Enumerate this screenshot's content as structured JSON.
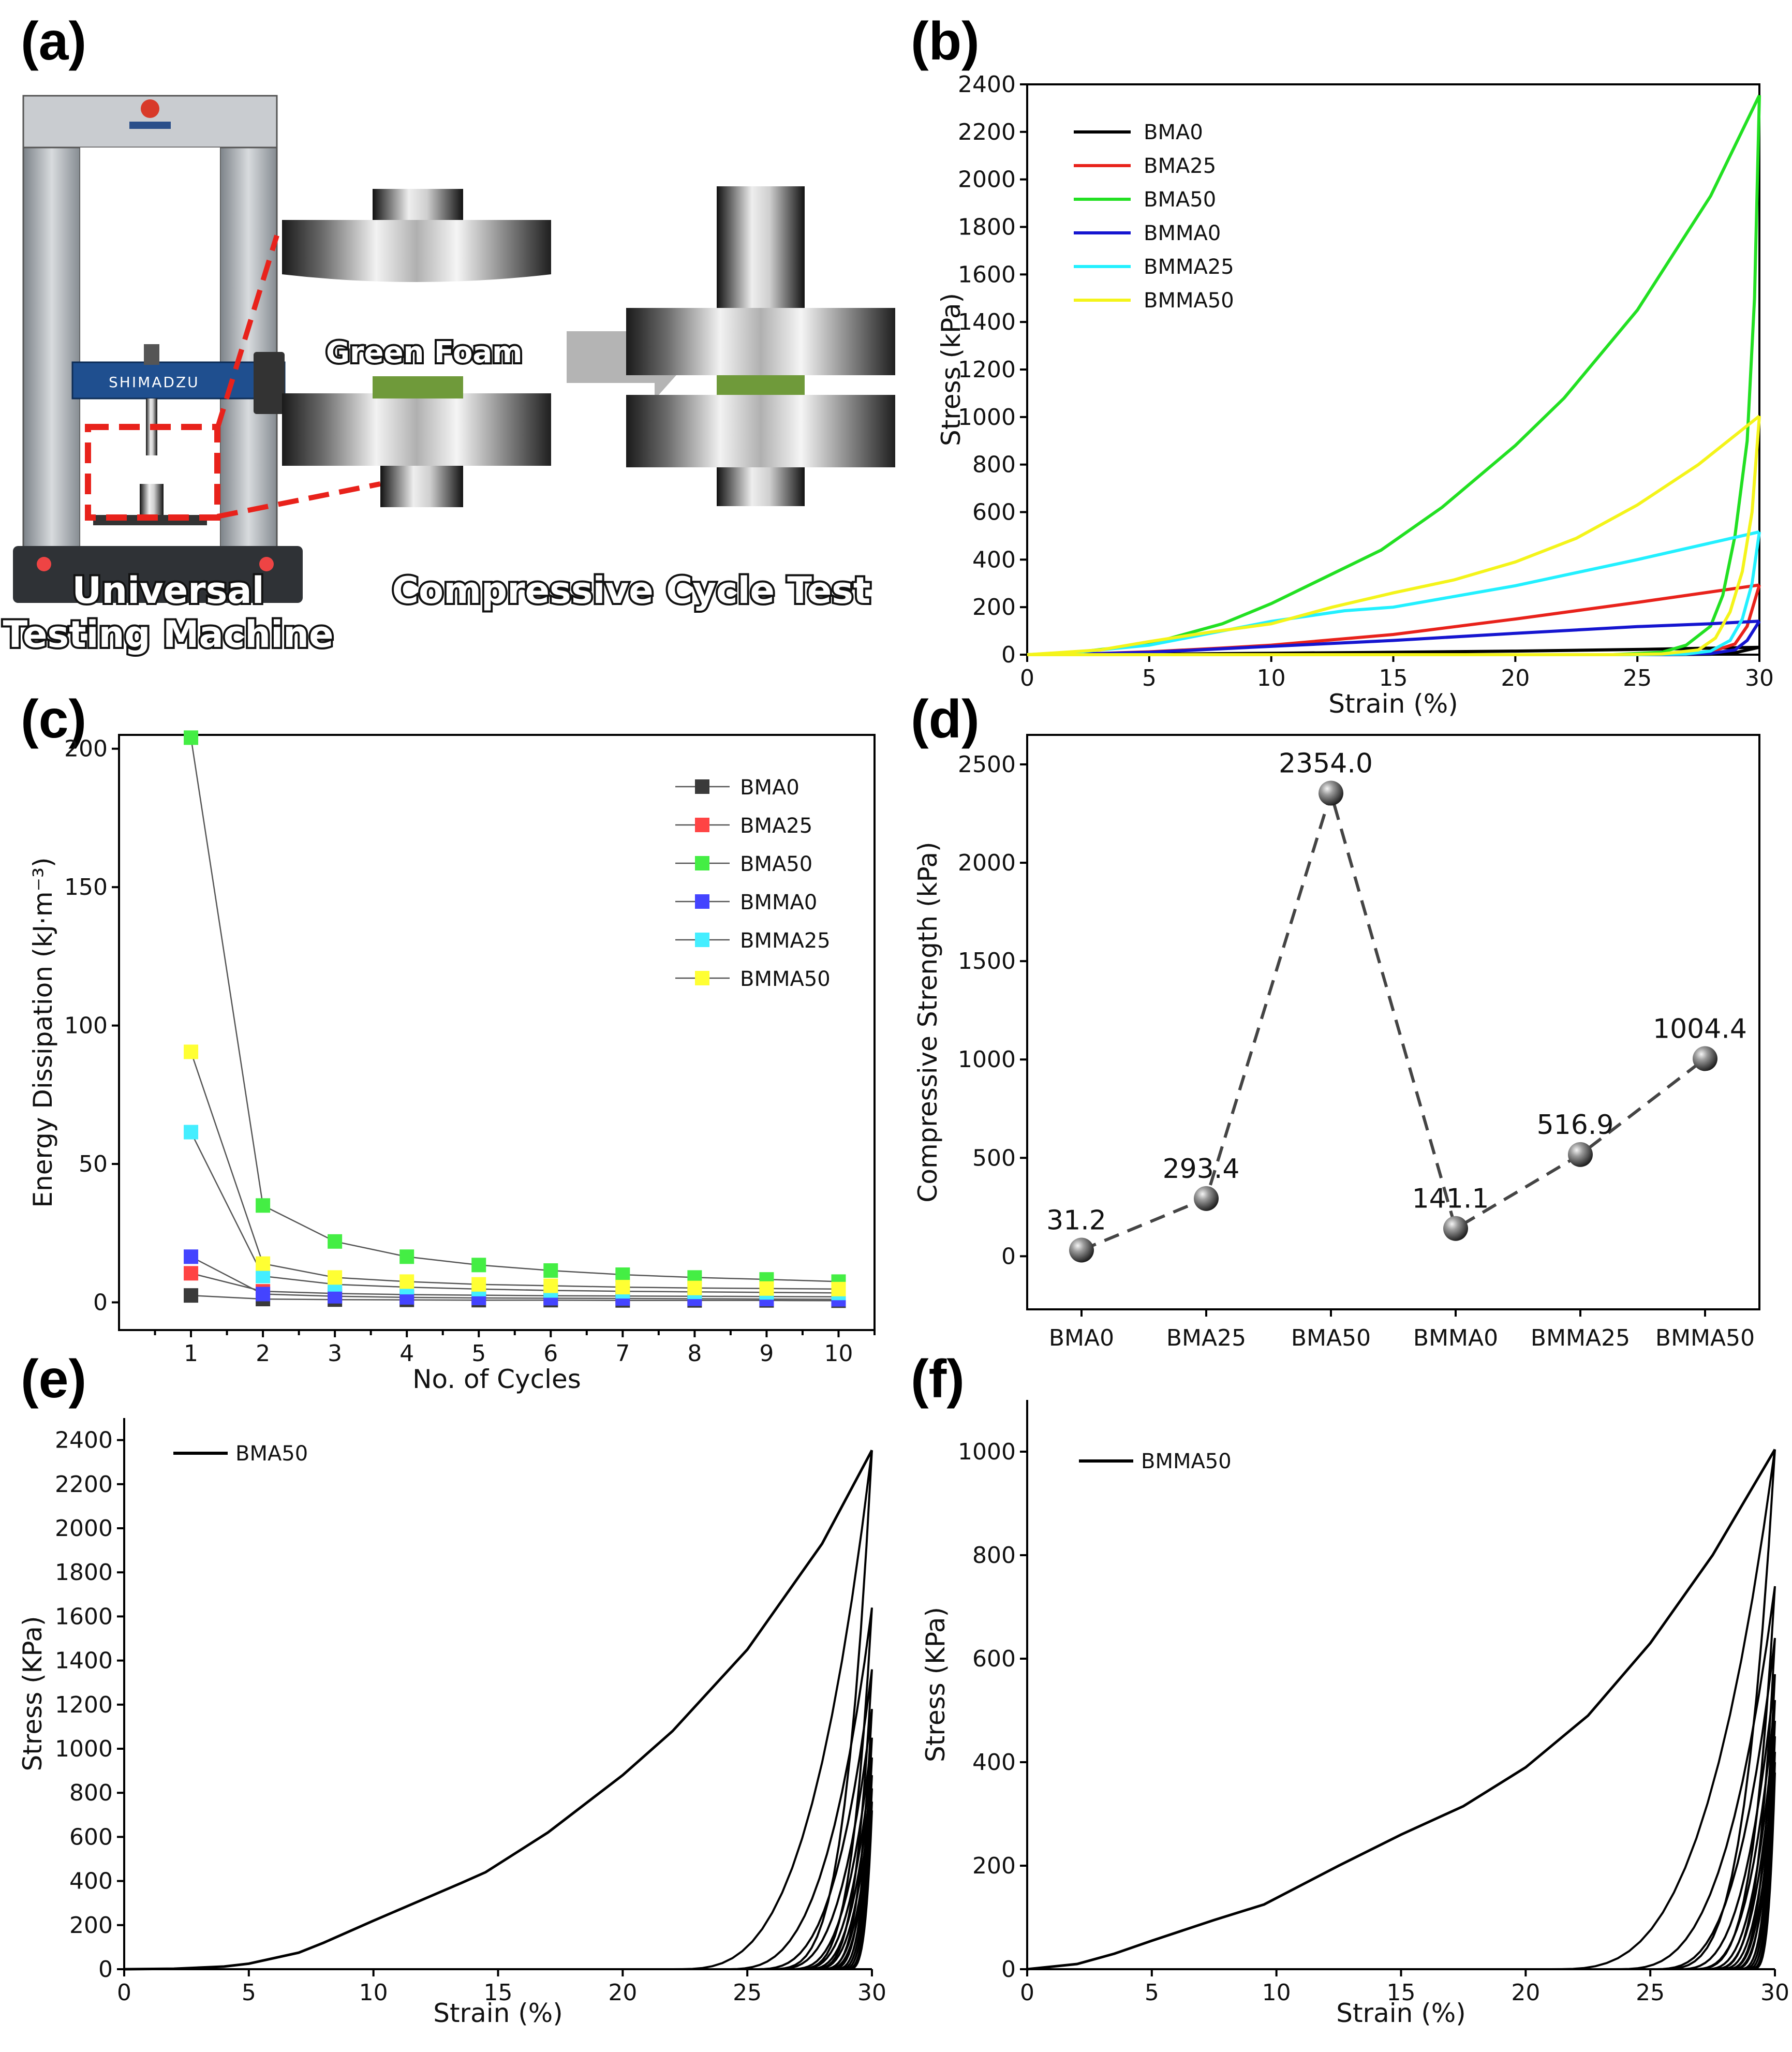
{
  "panels": {
    "a": {
      "label": "(a)",
      "machine_caption_line1": "Universal",
      "machine_caption_line2": "Testing Machine",
      "test_caption": "Compressive Cycle Test",
      "sample_label": "Green Foam",
      "machine_brand": "SHIMADZU",
      "colors": {
        "frame": "#a8adb3",
        "crosshead": "#1f4f8f",
        "foam": "#6f9a3a",
        "highlight": "#e8221b",
        "arrow": "#b4b4b4"
      }
    },
    "b": {
      "label": "(b)"
    },
    "c": {
      "label": "(c)"
    },
    "d": {
      "label": "(d)"
    },
    "e": {
      "label": "(e)"
    },
    "f": {
      "label": "(f)"
    }
  },
  "chart_data": [
    {
      "id": "b",
      "type": "line",
      "xlabel": "Strain (%)",
      "ylabel": "Stress (kPa)",
      "xlim": [
        0,
        30
      ],
      "ylim": [
        0,
        2400
      ],
      "xticks": [
        0,
        5,
        10,
        15,
        20,
        25,
        30
      ],
      "yticks": [
        0,
        200,
        400,
        600,
        800,
        1000,
        1200,
        1400,
        1600,
        1800,
        2000,
        2200,
        2400
      ],
      "legend_position": "top-left",
      "series": [
        {
          "name": "BMA0",
          "color": "#000000",
          "loading": [
            [
              0,
              0
            ],
            [
              5,
              2
            ],
            [
              10,
              6
            ],
            [
              15,
              10
            ],
            [
              20,
              15
            ],
            [
              25,
              22
            ],
            [
              30,
              31.2
            ]
          ],
          "unloading": [
            [
              30,
              31.2
            ],
            [
              29,
              8
            ],
            [
              28,
              2
            ],
            [
              26,
              0
            ],
            [
              0,
              0
            ]
          ]
        },
        {
          "name": "BMA25",
          "color": "#e8221b",
          "loading": [
            [
              0,
              0
            ],
            [
              2,
              2
            ],
            [
              5,
              12
            ],
            [
              8,
              28
            ],
            [
              10,
              40
            ],
            [
              15,
              85
            ],
            [
              20,
              150
            ],
            [
              25,
              220
            ],
            [
              30,
              293.4
            ]
          ],
          "unloading": [
            [
              30,
              293.4
            ],
            [
              29.5,
              120
            ],
            [
              29,
              45
            ],
            [
              28,
              12
            ],
            [
              27,
              3
            ],
            [
              25,
              0
            ],
            [
              0,
              0
            ]
          ]
        },
        {
          "name": "BMA50",
          "color": "#22e022",
          "loading": [
            [
              0,
              0
            ],
            [
              2,
              10
            ],
            [
              5,
              45
            ],
            [
              8,
              130
            ],
            [
              10,
              215
            ],
            [
              13.5,
              390
            ],
            [
              14.5,
              440
            ],
            [
              17,
              620
            ],
            [
              20,
              880
            ],
            [
              22,
              1080
            ],
            [
              25,
              1450
            ],
            [
              28,
              1930
            ],
            [
              30,
              2354
            ]
          ],
          "unloading": [
            [
              30,
              2354
            ],
            [
              29.8,
              1500
            ],
            [
              29.5,
              900
            ],
            [
              29,
              500
            ],
            [
              28.5,
              250
            ],
            [
              28,
              120
            ],
            [
              27,
              40
            ],
            [
              26,
              10
            ],
            [
              24,
              0
            ],
            [
              0,
              0
            ]
          ]
        },
        {
          "name": "BMMA0",
          "color": "#1515d0",
          "loading": [
            [
              0,
              0
            ],
            [
              3,
              5
            ],
            [
              5,
              10
            ],
            [
              8,
              25
            ],
            [
              10,
              35
            ],
            [
              15,
              60
            ],
            [
              20,
              90
            ],
            [
              25,
              118
            ],
            [
              28,
              130
            ],
            [
              30,
              141.1
            ]
          ],
          "unloading": [
            [
              30,
              141.1
            ],
            [
              29.5,
              60
            ],
            [
              29,
              20
            ],
            [
              28,
              5
            ],
            [
              26,
              0
            ],
            [
              0,
              0
            ]
          ]
        },
        {
          "name": "BMMA25",
          "color": "#22f0ff",
          "loading": [
            [
              0,
              0
            ],
            [
              2,
              10
            ],
            [
              5,
              40
            ],
            [
              8,
              100
            ],
            [
              10,
              140
            ],
            [
              13,
              185
            ],
            [
              15,
              200
            ],
            [
              20,
              290
            ],
            [
              25,
              400
            ],
            [
              30,
              516.9
            ]
          ],
          "unloading": [
            [
              30,
              516.9
            ],
            [
              29.7,
              300
            ],
            [
              29.3,
              150
            ],
            [
              28.8,
              60
            ],
            [
              28,
              15
            ],
            [
              27,
              3
            ],
            [
              25,
              0
            ],
            [
              0,
              0
            ]
          ]
        },
        {
          "name": "BMMA50",
          "color": "#f4f41a",
          "loading": [
            [
              0,
              0
            ],
            [
              3,
              20
            ],
            [
              5,
              55
            ],
            [
              7.5,
              95
            ],
            [
              10,
              130
            ],
            [
              12.5,
              200
            ],
            [
              15,
              260
            ],
            [
              17.5,
              315
            ],
            [
              20,
              390
            ],
            [
              22.5,
              490
            ],
            [
              25,
              630
            ],
            [
              27.5,
              800
            ],
            [
              30,
              1004.4
            ]
          ],
          "unloading": [
            [
              30,
              1004.4
            ],
            [
              29.7,
              600
            ],
            [
              29.3,
              350
            ],
            [
              28.8,
              180
            ],
            [
              28.2,
              70
            ],
            [
              27.5,
              20
            ],
            [
              26,
              3
            ],
            [
              24,
              0
            ],
            [
              0,
              0
            ]
          ]
        }
      ]
    },
    {
      "id": "c",
      "type": "line",
      "xlabel": "No. of Cycles",
      "ylabel": "Energy Dissipation (kJ·m⁻³)",
      "xlim": [
        0,
        10.5
      ],
      "ylim": [
        -10,
        205
      ],
      "xticks": [
        1,
        2,
        3,
        4,
        5,
        6,
        7,
        8,
        9,
        10
      ],
      "yticks": [
        0,
        50,
        100,
        150,
        200
      ],
      "legend_position": "top-right",
      "x": [
        1,
        2,
        3,
        4,
        5,
        6,
        7,
        8,
        9,
        10
      ],
      "series": [
        {
          "name": "BMA0",
          "color": "#3a3a3a",
          "values": [
            2.5,
            1.2,
            1.0,
            0.9,
            0.8,
            0.8,
            0.7,
            0.7,
            0.7,
            0.6
          ]
        },
        {
          "name": "BMA25",
          "color": "#ff4444",
          "values": [
            10.5,
            4.0,
            3.2,
            2.8,
            2.6,
            2.4,
            2.3,
            2.2,
            2.1,
            2.0
          ]
        },
        {
          "name": "BMA50",
          "color": "#44ee44",
          "values": [
            204,
            35,
            22,
            16.5,
            13.5,
            11.5,
            10,
            9,
            8.3,
            7.5
          ]
        },
        {
          "name": "BMMA0",
          "color": "#4444ff",
          "values": [
            16.5,
            3.0,
            2.2,
            1.8,
            1.6,
            1.5,
            1.4,
            1.3,
            1.2,
            1.1
          ]
        },
        {
          "name": "BMMA25",
          "color": "#44eeff",
          "values": [
            61.5,
            9.5,
            6.5,
            5.5,
            4.8,
            4.3,
            4.0,
            3.8,
            3.6,
            3.4
          ]
        },
        {
          "name": "BMMA50",
          "color": "#ffff33",
          "values": [
            90.5,
            14,
            9,
            7.5,
            6.5,
            6,
            5.5,
            5.2,
            5,
            4.8
          ]
        }
      ]
    },
    {
      "id": "d",
      "type": "scatter",
      "ylabel": "Compressive Strength (kPa)",
      "ylim": [
        -270,
        2650
      ],
      "yticks": [
        0,
        500,
        1000,
        1500,
        2000,
        2500
      ],
      "categories": [
        "BMA0",
        "BMA25",
        "BMA50",
        "BMMA0",
        "BMMA25",
        "BMMA50"
      ],
      "values": [
        31.2,
        293.4,
        2354.0,
        141.1,
        516.9,
        1004.4
      ],
      "data_labels": [
        "31.2",
        "293.4",
        "2354.0",
        "141.1",
        "516.9",
        "1004.4"
      ],
      "connector": "dashed"
    },
    {
      "id": "e",
      "type": "line",
      "xlabel": "Strain (%)",
      "ylabel": "Stress (KPa)",
      "xlim": [
        0,
        30
      ],
      "ylim": [
        0,
        2500
      ],
      "xticks": [
        0,
        5,
        10,
        15,
        20,
        25,
        30
      ],
      "yticks": [
        0,
        200,
        400,
        600,
        800,
        1000,
        1200,
        1400,
        1600,
        1800,
        2000,
        2200,
        2400
      ],
      "legend_position": "top-left",
      "series": [
        {
          "name": "BMA50",
          "color": "#000000",
          "loading": [
            [
              0,
              0
            ],
            [
              2,
              2
            ],
            [
              4,
              12
            ],
            [
              5,
              25
            ],
            [
              7,
              75
            ],
            [
              8,
              120
            ],
            [
              10,
              220
            ],
            [
              13.5,
              390
            ],
            [
              14.5,
              440
            ],
            [
              17,
              620
            ],
            [
              20,
              880
            ],
            [
              22,
              1080
            ],
            [
              25,
              1450
            ],
            [
              28,
              1930
            ],
            [
              30,
              2354
            ]
          ],
          "cycles": {
            "count": 10,
            "start": [
              22,
              24,
              25.2,
              26,
              26.6,
              27,
              27.3,
              27.6,
              27.9,
              28.1
            ],
            "peak": [
              2354,
              1640,
              1360,
              1180,
              1050,
              960,
              880,
              820,
              760,
              720
            ]
          }
        }
      ]
    },
    {
      "id": "f",
      "type": "line",
      "xlabel": "Strain (%)",
      "ylabel": "Stress (KPa)",
      "xlim": [
        0,
        30
      ],
      "ylim": [
        0,
        1100
      ],
      "xticks": [
        0,
        5,
        10,
        15,
        20,
        25,
        30
      ],
      "yticks": [
        0,
        200,
        400,
        600,
        800,
        1000
      ],
      "legend_position": "top-left",
      "series": [
        {
          "name": "BMMA50",
          "color": "#000000",
          "loading": [
            [
              0,
              0
            ],
            [
              2,
              10
            ],
            [
              3.5,
              30
            ],
            [
              5,
              55
            ],
            [
              7.5,
              95
            ],
            [
              9.5,
              125
            ],
            [
              12.5,
              200
            ],
            [
              15,
              260
            ],
            [
              17.5,
              315
            ],
            [
              20,
              390
            ],
            [
              22.5,
              490
            ],
            [
              25,
              630
            ],
            [
              27.5,
              800
            ],
            [
              30,
              1004.4
            ]
          ],
          "cycles": {
            "count": 10,
            "start": [
              21,
              23.5,
              25,
              26,
              26.6,
              27.1,
              27.4,
              27.7,
              28,
              28.2
            ],
            "peak": [
              1004.4,
              740,
              640,
              570,
              520,
              480,
              450,
              420,
              400,
              380
            ]
          }
        }
      ]
    }
  ]
}
